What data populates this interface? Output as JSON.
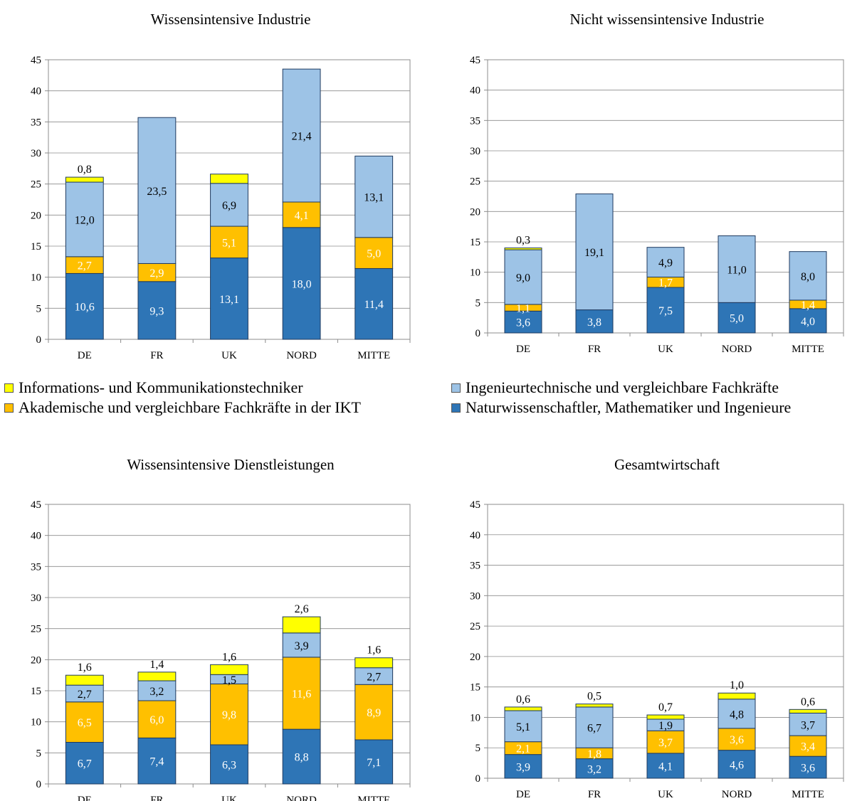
{
  "colors": {
    "nat": "#2e75b6",
    "ing": "#9dc3e6",
    "akad": "#ffc000",
    "info": "#ffff00"
  },
  "legend": [
    {
      "key": "info",
      "label": "Informations- und Kommunikationstechniker"
    },
    {
      "key": "ing",
      "label": "Ingenieurtechnische und vergleichbare Fachkräfte"
    },
    {
      "key": "akad",
      "label": "Akademische und vergleichbare Fachkräfte in der IKT"
    },
    {
      "key": "nat",
      "label": "Naturwissenschaftler, Mathematiker und Ingenieure"
    }
  ],
  "chart_data": [
    {
      "type": "bar",
      "stacked": true,
      "title": "Wissensintensive Industrie",
      "categories": [
        "DE",
        "FR",
        "UK",
        "NORD",
        "MITTE"
      ],
      "ylim": [
        0,
        45
      ],
      "yticks": [
        0,
        5,
        10,
        15,
        20,
        25,
        30,
        35,
        40,
        45
      ],
      "grid": true,
      "series": [
        {
          "name": "Naturwissenschaftler, Mathematiker und Ingenieure",
          "key": "nat",
          "values": [
            10.6,
            9.3,
            13.1,
            18.0,
            11.4
          ],
          "labels": [
            "10,6",
            "9,3",
            "13,1",
            "18,0",
            "11,4"
          ]
        },
        {
          "name": "Akademische und vergleichbare Fachkräfte in der IKT",
          "key": "akad",
          "values": [
            2.7,
            2.9,
            5.1,
            4.1,
            5.0
          ],
          "labels": [
            "2,7",
            "2,9",
            "5,1",
            "4,1",
            "5,0"
          ]
        },
        {
          "name": "Ingenieurtechnische und vergleichbare Fachkräfte",
          "key": "ing",
          "values": [
            12.0,
            23.5,
            6.9,
            21.4,
            13.1
          ],
          "labels": [
            "12,0",
            "23,5",
            "6,9",
            "21,4",
            "13,1"
          ]
        },
        {
          "name": "Informations- und Kommunikationstechniker",
          "key": "info",
          "values": [
            0.8,
            0,
            1.5,
            0,
            0
          ],
          "labels": [
            "0,8",
            "",
            "",
            "",
            ""
          ]
        }
      ]
    },
    {
      "type": "bar",
      "stacked": true,
      "title": "Nicht wissensintensive Industrie",
      "categories": [
        "DE",
        "FR",
        "UK",
        "NORD",
        "MITTE"
      ],
      "ylim": [
        0,
        45
      ],
      "yticks": [
        0,
        5,
        10,
        15,
        20,
        25,
        30,
        35,
        40,
        45
      ],
      "grid": true,
      "series": [
        {
          "name": "Naturwissenschaftler, Mathematiker und Ingenieure",
          "key": "nat",
          "values": [
            3.6,
            3.8,
            7.5,
            5.0,
            4.0
          ],
          "labels": [
            "3,6",
            "3,8",
            "7,5",
            "5,0",
            "4,0"
          ]
        },
        {
          "name": "Akademische und vergleichbare Fachkräfte in der IKT",
          "key": "akad",
          "values": [
            1.1,
            0,
            1.7,
            0,
            1.4
          ],
          "labels": [
            "1,1",
            "",
            "1,7",
            "",
            "1,4"
          ]
        },
        {
          "name": "Ingenieurtechnische und vergleichbare Fachkräfte",
          "key": "ing",
          "values": [
            9.0,
            19.1,
            4.9,
            11.0,
            8.0
          ],
          "labels": [
            "9,0",
            "19,1",
            "4,9",
            "11,0",
            "8,0"
          ]
        },
        {
          "name": "Informations- und Kommunikationstechniker",
          "key": "info",
          "values": [
            0.3,
            0,
            0,
            0,
            0
          ],
          "labels": [
            "0,3",
            "",
            "",
            "",
            ""
          ]
        }
      ]
    },
    {
      "type": "bar",
      "stacked": true,
      "title": "Wissensintensive Dienstleistungen",
      "categories": [
        "DE",
        "FR",
        "UK",
        "NORD",
        "MITTE"
      ],
      "ylim": [
        0,
        45
      ],
      "yticks": [
        0,
        5,
        10,
        15,
        20,
        25,
        30,
        35,
        40,
        45
      ],
      "grid": true,
      "series": [
        {
          "name": "Naturwissenschaftler, Mathematiker und Ingenieure",
          "key": "nat",
          "values": [
            6.7,
            7.4,
            6.3,
            8.8,
            7.1
          ],
          "labels": [
            "6,7",
            "7,4",
            "6,3",
            "8,8",
            "7,1"
          ]
        },
        {
          "name": "Akademische und vergleichbare Fachkräfte in der IKT",
          "key": "akad",
          "values": [
            6.5,
            6.0,
            9.8,
            11.6,
            8.9
          ],
          "labels": [
            "6,5",
            "6,0",
            "9,8",
            "11,6",
            "8,9"
          ]
        },
        {
          "name": "Ingenieurtechnische und vergleichbare Fachkräfte",
          "key": "ing",
          "values": [
            2.7,
            3.2,
            1.5,
            3.9,
            2.7
          ],
          "labels": [
            "2,7",
            "3,2",
            "1,5",
            "3,9",
            "2,7"
          ]
        },
        {
          "name": "Informations- und Kommunikationstechniker",
          "key": "info",
          "values": [
            1.6,
            1.4,
            1.6,
            2.6,
            1.6
          ],
          "labels": [
            "1,6",
            "1,4",
            "1,6",
            "2,6",
            "1,6"
          ]
        }
      ]
    },
    {
      "type": "bar",
      "stacked": true,
      "title": "Gesamtwirtschaft",
      "categories": [
        "DE",
        "FR",
        "UK",
        "NORD",
        "MITTE"
      ],
      "ylim": [
        0,
        45
      ],
      "yticks": [
        0,
        5,
        10,
        15,
        20,
        25,
        30,
        35,
        40,
        45
      ],
      "grid": true,
      "series": [
        {
          "name": "Naturwissenschaftler, Mathematiker und Ingenieure",
          "key": "nat",
          "values": [
            3.9,
            3.2,
            4.1,
            4.6,
            3.6
          ],
          "labels": [
            "3,9",
            "3,2",
            "4,1",
            "4,6",
            "3,6"
          ]
        },
        {
          "name": "Akademische und vergleichbare Fachkräfte in der IKT",
          "key": "akad",
          "values": [
            2.1,
            1.8,
            3.7,
            3.6,
            3.4
          ],
          "labels": [
            "2,1",
            "1,8",
            "3,7",
            "3,6",
            "3,4"
          ]
        },
        {
          "name": "Ingenieurtechnische und vergleichbare Fachkräfte",
          "key": "ing",
          "values": [
            5.1,
            6.7,
            1.9,
            4.8,
            3.7
          ],
          "labels": [
            "5,1",
            "6,7",
            "1,9",
            "4,8",
            "3,7"
          ]
        },
        {
          "name": "Informations- und Kommunikationstechniker",
          "key": "info",
          "values": [
            0.6,
            0.5,
            0.7,
            1.0,
            0.6
          ],
          "labels": [
            "0,6",
            "0,5",
            "0,7",
            "1,0",
            "0,6"
          ]
        }
      ]
    }
  ]
}
